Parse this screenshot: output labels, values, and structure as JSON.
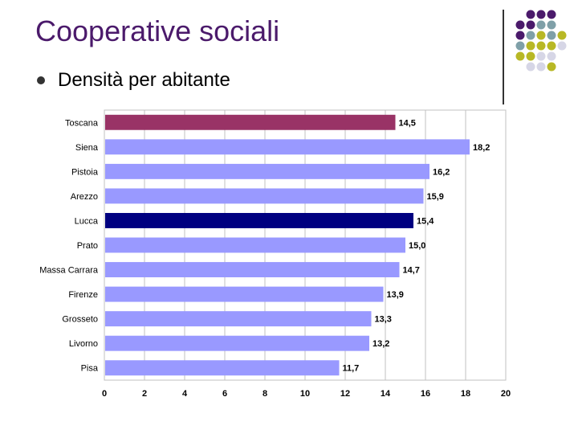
{
  "slide": {
    "title": "Cooperative sociali",
    "bullet": "Densità per abitante"
  },
  "decoration": {
    "dot_colors": [
      "#4b1a6b",
      "#7fa0a8",
      "#b8b825",
      "#d6d6e6"
    ]
  },
  "chart_data": {
    "type": "bar",
    "orientation": "horizontal",
    "title": "",
    "xlabel": "",
    "ylabel": "",
    "xlim": [
      0,
      20
    ],
    "x_ticks": [
      0,
      2,
      4,
      6,
      8,
      10,
      12,
      14,
      16,
      18,
      20
    ],
    "grid": true,
    "categories": [
      "Toscana",
      "Siena",
      "Pistoia",
      "Arezzo",
      "Lucca",
      "Prato",
      "Massa Carrara",
      "Firenze",
      "Grosseto",
      "Livorno",
      "Pisa"
    ],
    "values": [
      14.5,
      18.2,
      16.2,
      15.9,
      15.4,
      15.0,
      14.7,
      13.9,
      13.3,
      13.2,
      11.7
    ],
    "value_labels": [
      "14,5",
      "18,2",
      "16,2",
      "15,9",
      "15,4",
      "15,0",
      "14,7",
      "13,9",
      "13,3",
      "13,2",
      "11,7"
    ],
    "bar_colors": [
      "#993366",
      "#9999ff",
      "#9999ff",
      "#9999ff",
      "#000080",
      "#9999ff",
      "#9999ff",
      "#9999ff",
      "#9999ff",
      "#9999ff",
      "#9999ff"
    ]
  }
}
